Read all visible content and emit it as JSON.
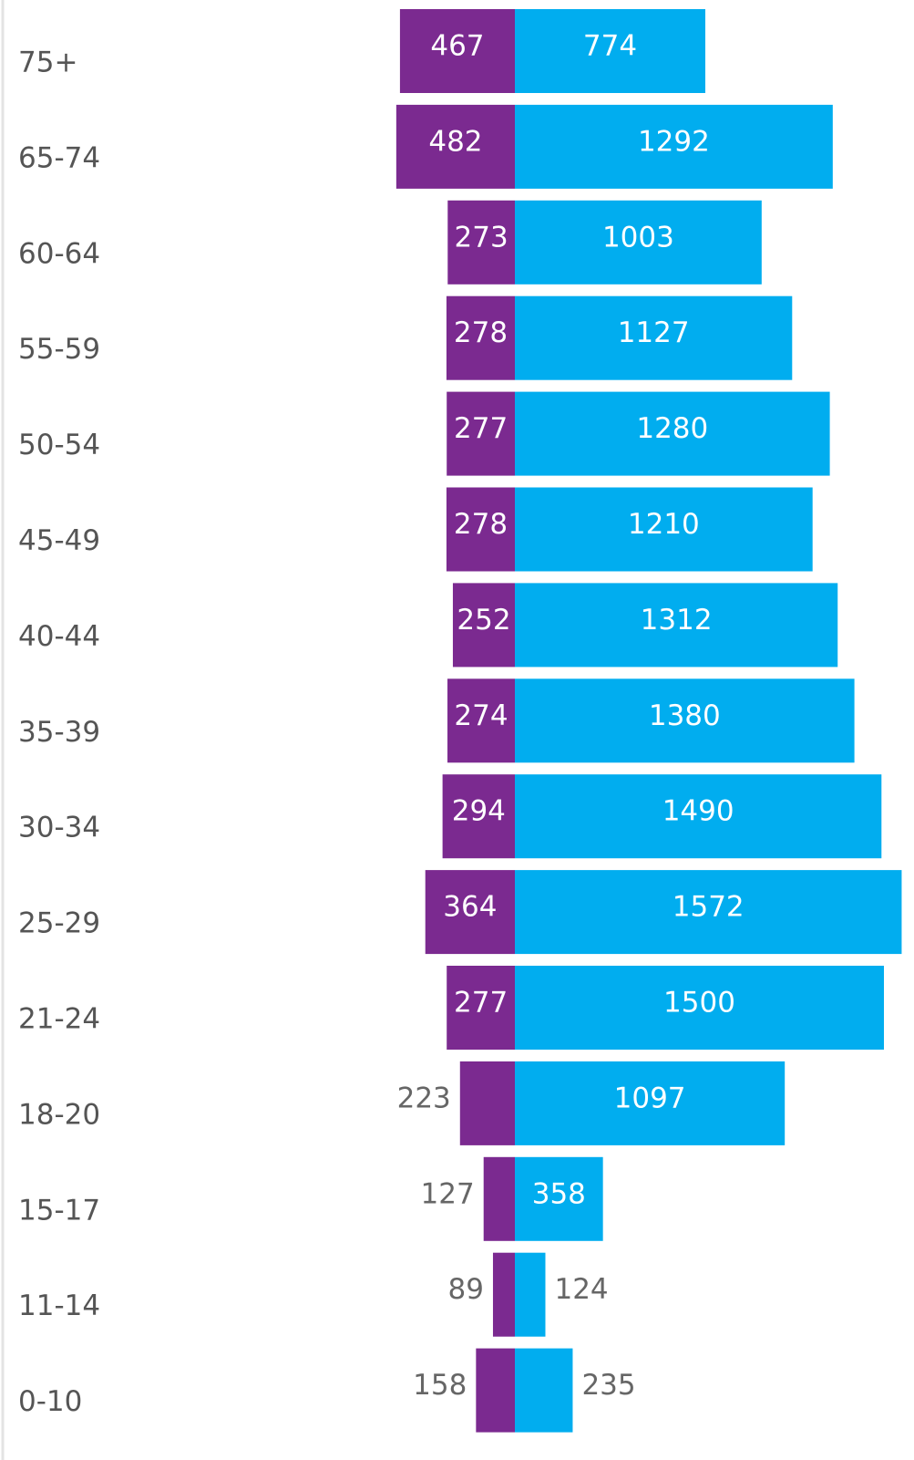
{
  "chart_data": {
    "type": "butterfly",
    "categories": [
      "75+",
      "65-74",
      "60-64",
      "55-59",
      "50-54",
      "45-49",
      "40-44",
      "35-39",
      "30-34",
      "25-29",
      "21-24",
      "18-20",
      "15-17",
      "11-14",
      "0-10"
    ],
    "series": [
      {
        "color": "#7b2a90",
        "values": [
          467,
          482,
          273,
          278,
          277,
          278,
          252,
          274,
          294,
          364,
          277,
          223,
          127,
          89,
          158
        ]
      },
      {
        "color": "#01adef",
        "values": [
          774,
          1292,
          1003,
          1127,
          1280,
          1210,
          1312,
          1380,
          1490,
          1572,
          1500,
          1097,
          358,
          124,
          235
        ]
      }
    ]
  }
}
